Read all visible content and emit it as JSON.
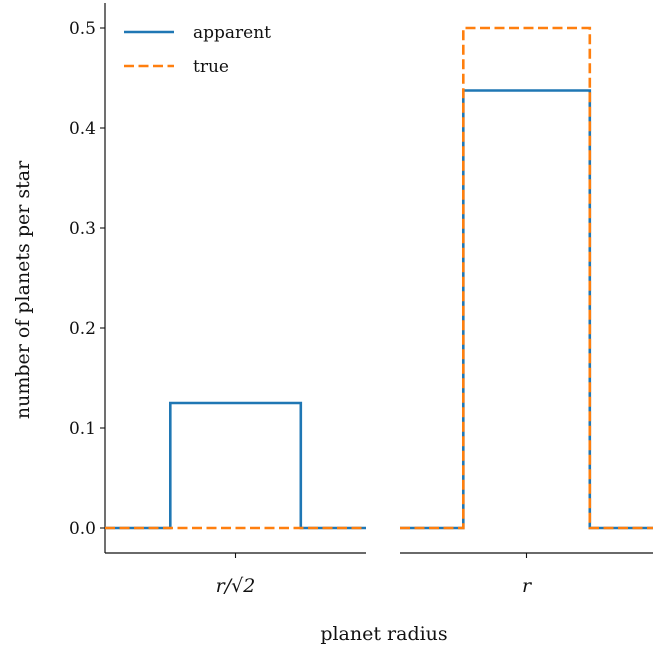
{
  "chart_data": {
    "type": "line",
    "xlabel": "planet radius",
    "ylabel": "number of planets per star",
    "ylim": [
      -0.025,
      0.525
    ],
    "yticks": [
      "0.0",
      "0.1",
      "0.2",
      "0.3",
      "0.4",
      "0.5"
    ],
    "ytick_values": [
      0.0,
      0.1,
      0.2,
      0.3,
      0.4,
      0.5
    ],
    "grid": false,
    "legend_position": "top-left",
    "panels": [
      {
        "xtick_label": "r/√2",
        "series": [
          {
            "name": "apparent",
            "style": "solid",
            "color": "#1f77b4",
            "x": [
              0,
              0.25,
              0.25,
              0.75,
              0.75,
              1
            ],
            "y": [
              0,
              0,
              0.125,
              0.125,
              0,
              0
            ]
          },
          {
            "name": "true",
            "style": "dashed",
            "color": "#ff7f0e",
            "x": [
              0,
              1
            ],
            "y": [
              0,
              0
            ]
          }
        ]
      },
      {
        "xtick_label": "r",
        "series": [
          {
            "name": "apparent",
            "style": "solid",
            "color": "#1f77b4",
            "x": [
              0,
              0.25,
              0.25,
              0.75,
              0.75,
              1
            ],
            "y": [
              0,
              0,
              0.4375,
              0.4375,
              0,
              0
            ]
          },
          {
            "name": "true",
            "style": "dashed",
            "color": "#ff7f0e",
            "x": [
              0,
              0.25,
              0.25,
              0.75,
              0.75,
              1
            ],
            "y": [
              0,
              0,
              0.5,
              0.5,
              0,
              0
            ]
          }
        ]
      }
    ],
    "legend": [
      {
        "label": "apparent",
        "style": "solid",
        "color": "#1f77b4"
      },
      {
        "label": "true",
        "style": "dashed",
        "color": "#ff7f0e"
      }
    ]
  }
}
